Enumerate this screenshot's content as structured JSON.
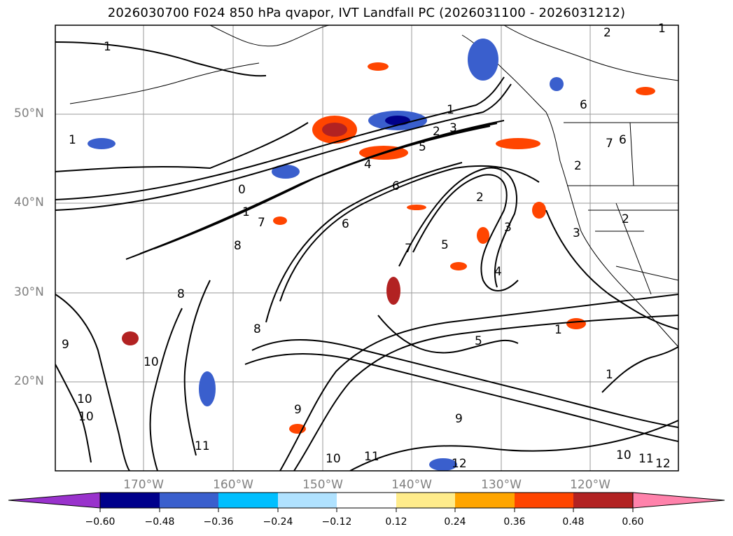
{
  "title": "2026030700 F024 850 hPa qvapor, IVT Landfall PC (2026031100 - 2026031212)",
  "map": {
    "lat_labels": [
      {
        "value": 50,
        "label": "50°N"
      },
      {
        "value": 40,
        "label": "40°N"
      },
      {
        "value": 30,
        "label": "30°N"
      },
      {
        "value": 20,
        "label": "20°N"
      }
    ],
    "lon_labels": [
      {
        "value": -170,
        "label": "170°W"
      },
      {
        "value": -160,
        "label": "160°W"
      },
      {
        "value": -150,
        "label": "150°W"
      },
      {
        "value": -140,
        "label": "140°W"
      },
      {
        "value": -130,
        "label": "130°W"
      },
      {
        "value": -120,
        "label": "120°W"
      }
    ],
    "contour_labels": [
      "0",
      "1",
      "1",
      "2",
      "1",
      "1",
      "2",
      "3",
      "4",
      "5",
      "6",
      "6",
      "6",
      "7",
      "7",
      "8",
      "8",
      "8",
      "9",
      "9",
      "9",
      "10",
      "10",
      "10",
      "10",
      "11",
      "11",
      "12",
      "2",
      "3",
      "4",
      "5",
      "5",
      "7",
      "1",
      "1",
      "2",
      "6",
      "3",
      "2",
      "1",
      "10",
      "11",
      "12"
    ],
    "colors": {
      "ocean_bg": "#ffffff",
      "contour": "#000000",
      "grid": "#999999"
    }
  },
  "colorbar": {
    "colors": [
      "#9932cc",
      "#00008b",
      "#3a5fcd",
      "#00bfff",
      "#b0e2ff",
      "#ffffff",
      "#ffec8b",
      "#ffa500",
      "#ff4500",
      "#b22222",
      "#ff82ab"
    ],
    "ticks": [
      "−0.60",
      "−0.48",
      "−0.36",
      "−0.24",
      "−0.12",
      "0.12",
      "0.24",
      "0.36",
      "0.48",
      "0.60"
    ]
  }
}
